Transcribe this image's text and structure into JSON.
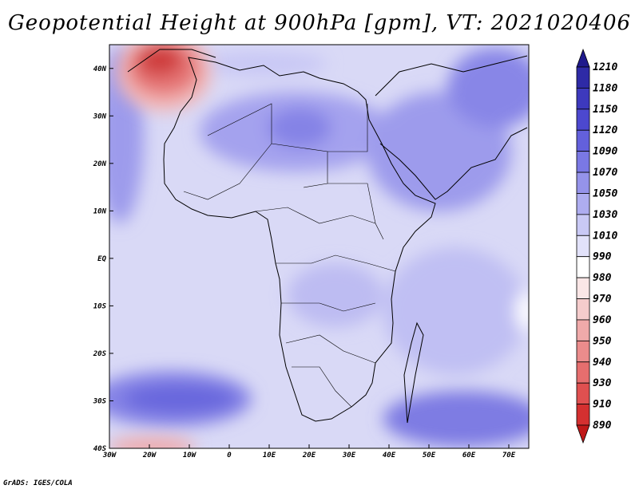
{
  "title": "Geopotential Height at 900hPa [gpm], VT: 2021020406",
  "credit": "GrADS: IGES/COLA",
  "map": {
    "projection": "lat-lon",
    "lon_range": [
      -30,
      75
    ],
    "lat_range": [
      -40,
      45
    ],
    "lon_ticks": [
      {
        "value": -30,
        "label": "30W"
      },
      {
        "value": -20,
        "label": "20W"
      },
      {
        "value": -10,
        "label": "10W"
      },
      {
        "value": 0,
        "label": "0"
      },
      {
        "value": 10,
        "label": "10E"
      },
      {
        "value": 20,
        "label": "20E"
      },
      {
        "value": 30,
        "label": "30E"
      },
      {
        "value": 40,
        "label": "40E"
      },
      {
        "value": 50,
        "label": "50E"
      },
      {
        "value": 60,
        "label": "60E"
      },
      {
        "value": 70,
        "label": "70E"
      }
    ],
    "lat_ticks": [
      {
        "value": 40,
        "label": "40N"
      },
      {
        "value": 30,
        "label": "30N"
      },
      {
        "value": 20,
        "label": "20N"
      },
      {
        "value": 10,
        "label": "10N"
      },
      {
        "value": 0,
        "label": "EQ"
      },
      {
        "value": -10,
        "label": "10S"
      },
      {
        "value": -20,
        "label": "20S"
      },
      {
        "value": -30,
        "label": "30S"
      },
      {
        "value": -40,
        "label": "40S"
      }
    ]
  },
  "colorbar": {
    "orientation": "vertical",
    "labels": [
      "1210",
      "1180",
      "1150",
      "1120",
      "1090",
      "1070",
      "1050",
      "1030",
      "1010",
      "990",
      "980",
      "970",
      "960",
      "950",
      "940",
      "930",
      "910",
      "890"
    ],
    "colors_top_to_bottom": [
      "#1f1a8c",
      "#2e2aa6",
      "#3d39bd",
      "#4c48cf",
      "#6360dc",
      "#7a78e4",
      "#9593ea",
      "#aeadf0",
      "#c9c9f5",
      "#e2e2fa",
      "#ffffff",
      "#fae6e6",
      "#f5cccc",
      "#f0aaaa",
      "#eb8c8c",
      "#e66e6e",
      "#e05050",
      "#d43030",
      "#c01818"
    ]
  }
}
